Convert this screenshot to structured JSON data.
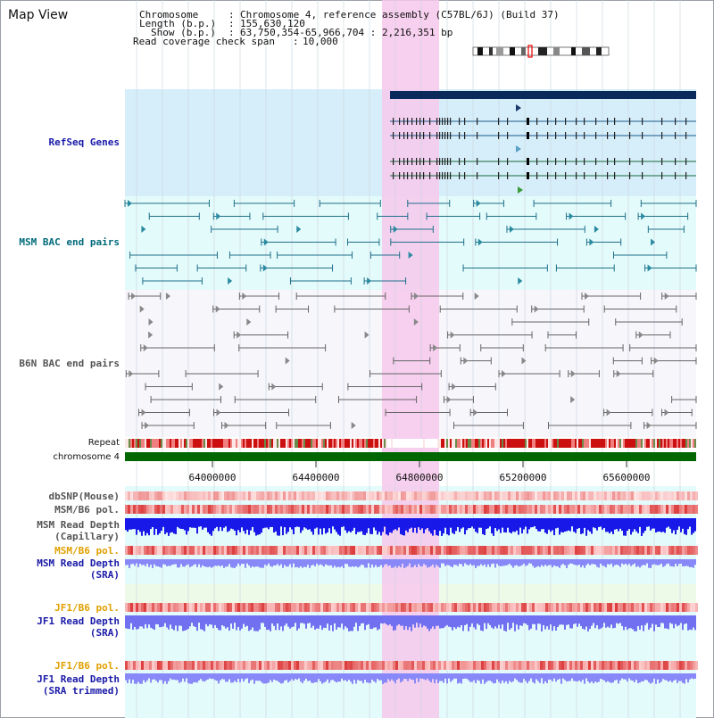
{
  "title": "Map View",
  "info": {
    "chromosome_label": "Chromosome",
    "chromosome_value": "Chromosome 4, reference assembly (C57BL/6J) (Build 37)",
    "length_label": "Length (b.p.)",
    "length_value": "155,630,120",
    "show_label": "Show (b.p.)",
    "show_value": "63,750,354-65,966,704 : 2,216,351 bp",
    "span_label": "Read coverage check span",
    "span_value": "10,000"
  },
  "tracks": {
    "refseq": "RefSeq Genes",
    "msm_bac": "MSM BAC end pairs",
    "b6n_bac": "B6N BAC end pairs",
    "repeat": "Repeat",
    "chromosome": "chromosome 4",
    "dbsnp": "dbSNP(Mouse)",
    "msm_b6_pol_1": "MSM/B6 pol.",
    "msm_depth_cap_1": "MSM Read Depth",
    "msm_depth_cap_2": "(Capillary)",
    "msm_b6_pol_2": "MSM/B6 pol.",
    "msm_depth_sra_1": "MSM Read Depth",
    "msm_depth_sra_2": "(SRA)",
    "jf1_b6_pol_1": "JF1/B6 pol.",
    "jf1_depth_sra_1": "JF1 Read Depth",
    "jf1_depth_sra_2": "(SRA)",
    "jf1_b6_pol_2": "JF1/B6 pol.",
    "jf1_depth_trim_1": "JF1 Read Depth",
    "jf1_depth_trim_2": "(SRA trimmed)"
  },
  "axis_ticks": [
    "64000000",
    "64400000",
    "64800000",
    "65200000",
    "65600000"
  ],
  "colors": {
    "highlight": "#f7c8ec",
    "refseq_bg": "#d6eefa",
    "msm_bg": "#e4fbfb",
    "chromosome_bar": "#006600",
    "gene_bar": "#0a2a5c",
    "label_blue": "#1a1aa8",
    "label_teal": "#006a7a",
    "label_orange": "#e0a000"
  }
}
